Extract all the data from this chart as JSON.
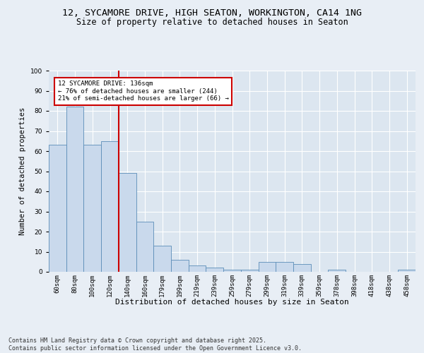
{
  "title1": "12, SYCAMORE DRIVE, HIGH SEATON, WORKINGTON, CA14 1NG",
  "title2": "Size of property relative to detached houses in Seaton",
  "xlabel": "Distribution of detached houses by size in Seaton",
  "ylabel": "Number of detached properties",
  "categories": [
    "60sqm",
    "80sqm",
    "100sqm",
    "120sqm",
    "140sqm",
    "160sqm",
    "179sqm",
    "199sqm",
    "219sqm",
    "239sqm",
    "259sqm",
    "279sqm",
    "299sqm",
    "319sqm",
    "339sqm",
    "359sqm",
    "378sqm",
    "398sqm",
    "418sqm",
    "438sqm",
    "458sqm"
  ],
  "values": [
    63,
    82,
    63,
    65,
    49,
    25,
    13,
    6,
    3,
    2,
    1,
    1,
    5,
    5,
    4,
    0,
    1,
    0,
    0,
    0,
    1
  ],
  "bar_color": "#c9d9ec",
  "bar_edge_color": "#5b8db8",
  "vline_color": "#cc0000",
  "annotation_text": "12 SYCAMORE DRIVE: 136sqm\n← 76% of detached houses are smaller (244)\n21% of semi-detached houses are larger (66) →",
  "annotation_box_color": "#ffffff",
  "annotation_box_edge": "#cc0000",
  "footer": "Contains HM Land Registry data © Crown copyright and database right 2025.\nContains public sector information licensed under the Open Government Licence v3.0.",
  "background_color": "#e8eef5",
  "plot_background": "#dce6f0",
  "ylim": [
    0,
    100
  ],
  "title1_fontsize": 9.5,
  "title2_fontsize": 8.5,
  "xlabel_fontsize": 8,
  "ylabel_fontsize": 7.5,
  "tick_fontsize": 6.5,
  "footer_fontsize": 6,
  "ann_fontsize": 6.5
}
